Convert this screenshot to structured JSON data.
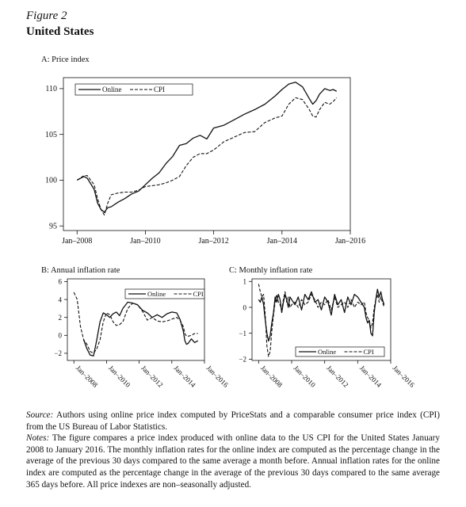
{
  "figure": {
    "label": "Figure 2",
    "title": "United States"
  },
  "notes": {
    "source_label": "Source:",
    "source_text": "Authors using online price index computed by PriceStats and a comparable consumer price index (CPI) from the US Bureau of Labor Statistics.",
    "notes_label": "Notes:",
    "notes_text": "The figure compares a price index produced with online data to the US CPI for the United States January 2008 to January 2016. The monthly inflation rates for the online index are computed as the percentage change in the average of the previous 30 days compared to the same average a month before. Annual inflation rates for the online index are computed as the percentage change in the average of the previous 30 days compared to the same average 365 days before. All price indexes are non–seasonally adjusted."
  },
  "chart_data": [
    {
      "id": "A",
      "type": "line",
      "title": "A: Price index",
      "xlim": [
        2007.6,
        2016.0
      ],
      "ylim": [
        94.5,
        111.2
      ],
      "yticks": [
        95,
        100,
        105,
        110
      ],
      "yticklabels": [
        "95",
        "100",
        "105",
        "110"
      ],
      "xticks": [
        2008,
        2010,
        2012,
        2014,
        2016
      ],
      "xticklabels": [
        "Jan–2008",
        "Jan–2010",
        "Jan–2012",
        "Jan–2014",
        "Jan–2016"
      ],
      "legend_position": "top-left",
      "grid": false,
      "series": [
        {
          "name": "Online",
          "style": "solid",
          "x": [
            2008.0,
            2008.2,
            2008.3,
            2008.5,
            2008.6,
            2008.7,
            2008.8,
            2008.9,
            2009.0,
            2009.2,
            2009.4,
            2009.6,
            2009.8,
            2010.0,
            2010.2,
            2010.4,
            2010.6,
            2010.8,
            2011.0,
            2011.2,
            2011.4,
            2011.6,
            2011.8,
            2012.0,
            2012.3,
            2012.6,
            2012.9,
            2013.2,
            2013.5,
            2013.8,
            2014.0,
            2014.2,
            2014.4,
            2014.6,
            2014.8,
            2014.9,
            2015.0,
            2015.1,
            2015.25,
            2015.4,
            2015.5,
            2015.6
          ],
          "values": [
            100.0,
            100.4,
            100.2,
            99.0,
            97.5,
            96.8,
            96.5,
            97.0,
            97.1,
            97.6,
            98.0,
            98.5,
            98.8,
            99.5,
            100.2,
            100.8,
            101.8,
            102.6,
            103.8,
            104.0,
            104.6,
            104.9,
            104.5,
            105.7,
            106.0,
            106.6,
            107.2,
            107.7,
            108.3,
            109.2,
            109.9,
            110.5,
            110.7,
            110.2,
            108.9,
            108.3,
            108.7,
            109.4,
            110.0,
            109.8,
            109.9,
            109.7
          ]
        },
        {
          "name": "CPI",
          "style": "dashed",
          "x": [
            2008.0,
            2008.2,
            2008.3,
            2008.5,
            2008.6,
            2008.7,
            2008.8,
            2008.9,
            2009.0,
            2009.2,
            2009.4,
            2009.6,
            2009.8,
            2010.0,
            2010.2,
            2010.4,
            2010.6,
            2010.8,
            2011.0,
            2011.2,
            2011.4,
            2011.6,
            2011.8,
            2012.0,
            2012.3,
            2012.6,
            2012.9,
            2013.2,
            2013.5,
            2013.8,
            2014.0,
            2014.2,
            2014.4,
            2014.6,
            2014.8,
            2014.9,
            2015.0,
            2015.1,
            2015.25,
            2015.4,
            2015.5,
            2015.6
          ],
          "values": [
            100.0,
            100.5,
            100.5,
            99.5,
            98.0,
            96.8,
            96.2,
            97.5,
            98.4,
            98.6,
            98.7,
            98.7,
            98.9,
            99.3,
            99.4,
            99.5,
            99.7,
            100.0,
            100.4,
            101.6,
            102.5,
            102.9,
            102.9,
            103.3,
            104.2,
            104.7,
            105.2,
            105.3,
            106.3,
            106.8,
            107.0,
            108.3,
            109.0,
            108.8,
            107.7,
            107.0,
            106.9,
            107.7,
            108.5,
            108.3,
            108.6,
            109.0
          ]
        }
      ]
    },
    {
      "id": "B",
      "type": "line",
      "title": "B: Annual inflation rate",
      "xlim": [
        2007.6,
        2016.0
      ],
      "ylim": [
        -2.8,
        6.3
      ],
      "yticks": [
        -2,
        0,
        2,
        4,
        6
      ],
      "yticklabels": [
        "−2",
        "0",
        "2",
        "4",
        "6"
      ],
      "xticks": [
        2008,
        2010,
        2012,
        2014,
        2016
      ],
      "xticklabels": [
        "Jan–2008",
        "Jan–2010",
        "Jan–2012",
        "Jan–2014",
        "Jan–2016"
      ],
      "legend_position": "top-right",
      "grid": false,
      "series": [
        {
          "name": "Online",
          "style": "solid",
          "x": [
            2008.6,
            2008.8,
            2009.0,
            2009.2,
            2009.4,
            2009.6,
            2009.8,
            2010.0,
            2010.2,
            2010.4,
            2010.6,
            2010.8,
            2011.0,
            2011.3,
            2011.6,
            2011.9,
            2012.2,
            2012.5,
            2012.8,
            2013.1,
            2013.4,
            2013.7,
            2014.0,
            2014.3,
            2014.5,
            2014.7,
            2014.8,
            2014.9,
            2015.0,
            2015.2,
            2015.4,
            2015.6
          ],
          "values": [
            -0.5,
            -1.5,
            -2.2,
            -2.3,
            -0.5,
            1.5,
            2.5,
            2.3,
            2.0,
            2.4,
            2.6,
            2.2,
            3.0,
            3.7,
            3.6,
            3.4,
            2.8,
            2.5,
            2.0,
            2.3,
            2.0,
            2.4,
            2.6,
            2.5,
            1.8,
            0.5,
            -0.6,
            -1.0,
            -0.9,
            -0.4,
            -0.8,
            -0.6
          ]
        },
        {
          "name": "CPI",
          "style": "dashed",
          "x": [
            2008.0,
            2008.2,
            2008.4,
            2008.6,
            2008.8,
            2009.0,
            2009.2,
            2009.4,
            2009.6,
            2009.8,
            2010.0,
            2010.2,
            2010.4,
            2010.6,
            2010.8,
            2011.0,
            2011.3,
            2011.6,
            2011.9,
            2012.2,
            2012.5,
            2012.8,
            2013.1,
            2013.4,
            2013.7,
            2014.0,
            2014.3,
            2014.5,
            2014.7,
            2014.8,
            2014.9,
            2015.0,
            2015.2,
            2015.4,
            2015.6
          ],
          "values": [
            4.8,
            4.0,
            1.0,
            -0.5,
            -1.0,
            -1.8,
            -2.0,
            -1.5,
            -0.5,
            1.5,
            2.5,
            2.3,
            1.5,
            1.1,
            1.2,
            1.5,
            3.0,
            3.6,
            3.4,
            2.7,
            1.7,
            2.0,
            1.6,
            1.5,
            1.6,
            1.8,
            2.0,
            1.7,
            1.0,
            0.2,
            -0.1,
            -0.1,
            0.0,
            0.2,
            0.2
          ]
        }
      ]
    },
    {
      "id": "C",
      "type": "line",
      "title": "C: Monthly inflation rate",
      "xlim": [
        2007.6,
        2016.0
      ],
      "ylim": [
        -2.05,
        1.1
      ],
      "yticks": [
        -2,
        -1,
        0,
        1
      ],
      "yticklabels": [
        "−2",
        "−1",
        "0",
        "1"
      ],
      "xticks": [
        2008,
        2010,
        2012,
        2014,
        2016
      ],
      "xticklabels": [
        "Jan–2008",
        "Jan–2010",
        "Jan–2012",
        "Jan–2014",
        "Jan–2016"
      ],
      "legend_position": "bottom-right",
      "grid": false,
      "series": [
        {
          "name": "Online",
          "style": "solid",
          "x": [
            2008.0,
            2008.1,
            2008.2,
            2008.3,
            2008.4,
            2008.5,
            2008.6,
            2008.7,
            2008.8,
            2008.9,
            2009.0,
            2009.1,
            2009.2,
            2009.3,
            2009.4,
            2009.5,
            2009.6,
            2009.7,
            2009.8,
            2009.9,
            2010.0,
            2010.2,
            2010.4,
            2010.6,
            2010.8,
            2011.0,
            2011.2,
            2011.4,
            2011.6,
            2011.8,
            2012.0,
            2012.2,
            2012.4,
            2012.6,
            2012.8,
            2013.0,
            2013.2,
            2013.4,
            2013.6,
            2013.8,
            2014.0,
            2014.2,
            2014.4,
            2014.5,
            2014.6,
            2014.7,
            2014.8,
            2014.9,
            2015.0,
            2015.1,
            2015.2,
            2015.3,
            2015.4,
            2015.5,
            2015.6
          ],
          "values": [
            0.3,
            0.2,
            0.4,
            0.1,
            -0.5,
            -1.0,
            -1.3,
            -1.1,
            -0.6,
            -0.2,
            0.4,
            0.2,
            0.5,
            0.3,
            -0.2,
            0.2,
            0.5,
            0.3,
            0.0,
            0.4,
            0.3,
            0.1,
            0.4,
            -0.1,
            0.5,
            0.3,
            0.6,
            0.2,
            0.3,
            -0.1,
            0.4,
            0.2,
            -0.3,
            0.5,
            0.1,
            0.3,
            -0.2,
            0.4,
            0.1,
            0.5,
            0.4,
            0.2,
            0.0,
            -0.4,
            -0.6,
            -0.5,
            -1.0,
            -1.1,
            -0.2,
            0.3,
            0.7,
            0.4,
            0.6,
            0.3,
            0.1
          ]
        },
        {
          "name": "CPI",
          "style": "dashed",
          "x": [
            2008.0,
            2008.1,
            2008.2,
            2008.3,
            2008.4,
            2008.5,
            2008.6,
            2008.7,
            2008.8,
            2008.9,
            2009.0,
            2009.1,
            2009.2,
            2009.3,
            2009.4,
            2009.5,
            2009.6,
            2009.7,
            2009.8,
            2009.9,
            2010.0,
            2010.2,
            2010.4,
            2010.6,
            2010.8,
            2011.0,
            2011.2,
            2011.4,
            2011.6,
            2011.8,
            2012.0,
            2012.2,
            2012.4,
            2012.6,
            2012.8,
            2013.0,
            2013.2,
            2013.4,
            2013.6,
            2013.8,
            2014.0,
            2014.2,
            2014.4,
            2014.5,
            2014.6,
            2014.7,
            2014.8,
            2014.9,
            2015.0,
            2015.1,
            2015.2,
            2015.3,
            2015.4,
            2015.5,
            2015.6
          ],
          "values": [
            0.9,
            0.6,
            0.4,
            0.5,
            -0.3,
            -1.5,
            -1.9,
            -1.7,
            -0.9,
            -0.3,
            0.2,
            0.5,
            0.2,
            0.1,
            -0.1,
            0.3,
            0.6,
            0.2,
            0.4,
            0.0,
            0.1,
            0.2,
            0.0,
            0.3,
            0.1,
            0.2,
            0.5,
            0.3,
            0.0,
            0.2,
            0.1,
            0.3,
            -0.1,
            0.4,
            0.0,
            0.1,
            0.2,
            0.0,
            0.3,
            0.0,
            0.2,
            0.1,
            0.2,
            -0.2,
            -0.4,
            -0.5,
            -0.8,
            -0.6,
            0.0,
            0.3,
            0.5,
            0.2,
            0.4,
            0.2,
            0.0
          ]
        }
      ]
    }
  ]
}
